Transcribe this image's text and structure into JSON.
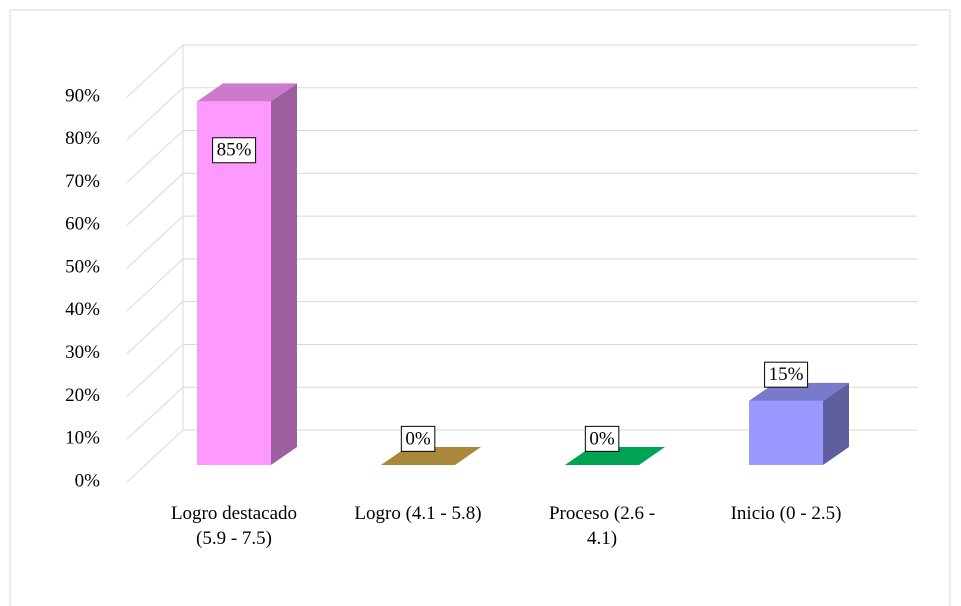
{
  "chart_data": {
    "type": "bar3d",
    "categories": [
      "Logro destacado (5.9 - 7.5)",
      "Logro (4.1 - 5.8)",
      "Proceso (2.6 - 4.1)",
      "Inicio (0 - 2.5)"
    ],
    "values": [
      85,
      0,
      0,
      15
    ],
    "value_labels": [
      "85%",
      "0%",
      "0%",
      "15%"
    ],
    "colors": [
      "#ff99ff",
      "#d4aa4a",
      "#00cc66",
      "#9999ff"
    ],
    "ylim": [
      0,
      90
    ],
    "yticks": [
      {
        "value": 0,
        "label": "0%"
      },
      {
        "value": 10,
        "label": "10%"
      },
      {
        "value": 20,
        "label": "20%"
      },
      {
        "value": 30,
        "label": "30%"
      },
      {
        "value": 40,
        "label": "40%"
      },
      {
        "value": 50,
        "label": "50%"
      },
      {
        "value": 60,
        "label": "60%"
      },
      {
        "value": 70,
        "label": "70%"
      },
      {
        "value": 80,
        "label": "80%"
      },
      {
        "value": 90,
        "label": "90%"
      }
    ],
    "grid": true
  }
}
